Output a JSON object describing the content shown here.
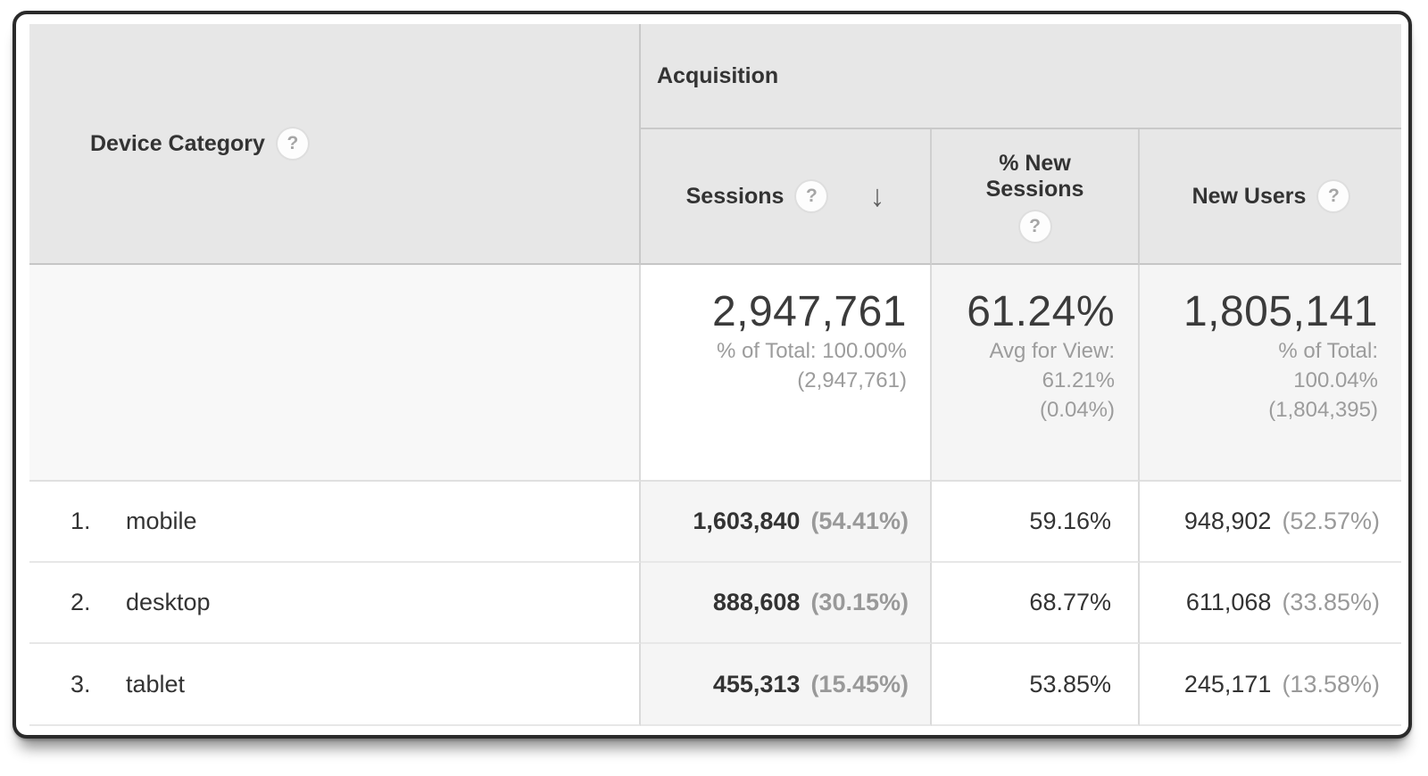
{
  "table": {
    "dimension_header": {
      "label": "Device Category"
    },
    "group_header": {
      "label": "Acquisition"
    },
    "columns": {
      "sessions": {
        "label": "Sessions",
        "sorted": "descending"
      },
      "pct_new_sessions": {
        "label": "% New Sessions"
      },
      "new_users": {
        "label": "New Users"
      }
    },
    "summary": {
      "sessions": {
        "value": "2,947,761",
        "sub_lines": [
          "% of Total: 100.00%",
          "(2,947,761)"
        ]
      },
      "pct_new_sessions": {
        "value": "61.24%",
        "sub_lines": [
          "Avg for View:",
          "61.21%",
          "(0.04%)"
        ]
      },
      "new_users": {
        "value": "1,805,141",
        "sub_lines": [
          "% of Total:",
          "100.04%",
          "(1,804,395)"
        ]
      }
    },
    "rows": [
      {
        "index": "1.",
        "label": "mobile",
        "sessions": "1,603,840",
        "sessions_pct": "(54.41%)",
        "pct_new_sessions": "59.16%",
        "new_users": "948,902",
        "new_users_pct": "(52.57%)"
      },
      {
        "index": "2.",
        "label": "desktop",
        "sessions": "888,608",
        "sessions_pct": "(30.15%)",
        "pct_new_sessions": "68.77%",
        "new_users": "611,068",
        "new_users_pct": "(33.85%)"
      },
      {
        "index": "3.",
        "label": "tablet",
        "sessions": "455,313",
        "sessions_pct": "(15.45%)",
        "pct_new_sessions": "53.85%",
        "new_users": "245,171",
        "new_users_pct": "(13.58%)"
      }
    ]
  },
  "icons": {
    "help_glyph": "?",
    "sort_descending_glyph": "↓"
  },
  "colors": {
    "header_bg": "#e7e7e7",
    "sorted_column_bg": "#f5f5f5",
    "summary_row_bg": "#f8f8f8",
    "text": "#333333",
    "muted_text": "#999999",
    "border": "#c9c9c9"
  }
}
